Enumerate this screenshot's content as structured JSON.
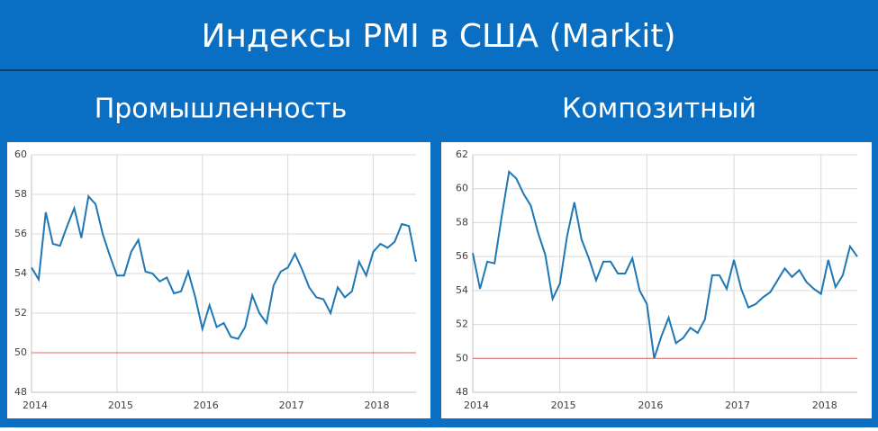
{
  "title": "Индексы PMI в США (Markit)",
  "chart_data": [
    {
      "type": "line",
      "title": "Промышленность",
      "categories": [
        "2014",
        null,
        null,
        null,
        null,
        null,
        null,
        null,
        null,
        null,
        null,
        null,
        "2015",
        null,
        null,
        null,
        null,
        null,
        null,
        null,
        null,
        null,
        null,
        null,
        "2016",
        null,
        null,
        null,
        null,
        null,
        null,
        null,
        null,
        null,
        null,
        null,
        "2017",
        null,
        null,
        null,
        null,
        null,
        null,
        null,
        null,
        null,
        null,
        null,
        "2018",
        null,
        null,
        null,
        null,
        null,
        null
      ],
      "series": [
        {
          "color": "#1f77b4",
          "values": [
            54.3,
            53.7,
            57.1,
            55.5,
            55.4,
            56.4,
            57.3,
            55.8,
            57.9,
            57.5,
            56.0,
            54.9,
            53.9,
            53.9,
            55.1,
            55.7,
            54.1,
            54.0,
            53.6,
            53.8,
            53.0,
            53.1,
            54.1,
            52.8,
            51.2,
            52.4,
            51.3,
            51.5,
            50.8,
            50.7,
            51.3,
            52.9,
            52.0,
            51.5,
            53.4,
            54.1,
            54.3,
            55.0,
            54.2,
            53.3,
            52.8,
            52.7,
            52.0,
            53.3,
            52.8,
            53.1,
            54.6,
            53.9,
            55.1,
            55.5,
            55.3,
            55.6,
            56.5,
            56.4,
            54.6
          ]
        }
      ],
      "ylim": [
        48,
        60
      ],
      "yticks": [
        48,
        50,
        52,
        54,
        56,
        58,
        60
      ],
      "reference_line": {
        "value": 50,
        "color": "#e06666"
      },
      "grid": true
    },
    {
      "type": "line",
      "title": "Композитный",
      "categories": [
        "2014",
        null,
        null,
        null,
        null,
        null,
        null,
        null,
        null,
        null,
        null,
        null,
        "2015",
        null,
        null,
        null,
        null,
        null,
        null,
        null,
        null,
        null,
        null,
        null,
        "2016",
        null,
        null,
        null,
        null,
        null,
        null,
        null,
        null,
        null,
        null,
        null,
        "2017",
        null,
        null,
        null,
        null,
        null,
        null,
        null,
        null,
        null,
        null,
        null,
        "2018",
        null,
        null,
        null,
        null,
        null
      ],
      "series": [
        {
          "color": "#1f77b4",
          "values": [
            56.2,
            54.1,
            55.7,
            55.6,
            58.4,
            61.0,
            60.6,
            59.7,
            59.0,
            57.4,
            56.1,
            53.5,
            54.4,
            57.2,
            59.2,
            57.0,
            55.9,
            54.6,
            55.7,
            55.7,
            55.0,
            55.0,
            55.9,
            54.0,
            53.2,
            50.0,
            51.3,
            52.4,
            50.9,
            51.2,
            51.8,
            51.5,
            52.3,
            54.9,
            54.9,
            54.1,
            55.8,
            54.1,
            53.0,
            53.2,
            53.6,
            53.9,
            54.6,
            55.3,
            54.8,
            55.2,
            54.5,
            54.1,
            53.8,
            55.8,
            54.2,
            54.9,
            56.6,
            56.0
          ]
        }
      ],
      "ylim": [
        48,
        62
      ],
      "yticks": [
        48,
        50,
        52,
        54,
        56,
        58,
        60,
        62
      ],
      "reference_line": {
        "value": 50,
        "color": "#e06666"
      },
      "grid": true
    }
  ]
}
